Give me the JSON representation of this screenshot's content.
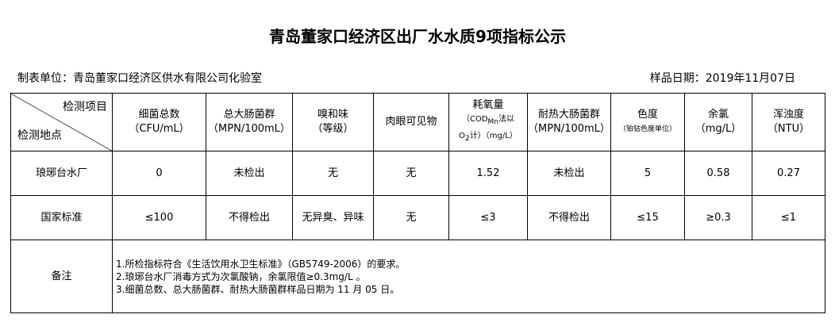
{
  "title": "青岛董家口经济区出厂水水质9项指标公示",
  "unit": "制表单位：青岛董家口经济区供水有限公司化验室",
  "date": "样品日期：2019年11月07日",
  "corner": {
    "top": "检测项目",
    "bottom": "检测地点"
  },
  "headers": [
    {
      "name": "细菌总数",
      "unit": "（CFU/mL）"
    },
    {
      "name": "总大肠菌群",
      "unit": "（MPN/100mL）"
    },
    {
      "name": "嗅和味",
      "unit": "（等级）"
    },
    {
      "name": "肉眼可见物",
      "unit": ""
    },
    {
      "name": "耗氧量",
      "unit": "（COD",
      "sub": "Mn",
      "unit2": "法以",
      "o2": "O",
      "o2sub": "2",
      "unit3": "计）（mg/L）"
    },
    {
      "name": "耐热大肠菌群",
      "unit": "（MPN/100mL）"
    },
    {
      "name": "色度",
      "unit": "（铂钴色度单位）"
    },
    {
      "name": "余氯",
      "unit": "（mg/L）"
    },
    {
      "name": "浑浊度",
      "unit": "（NTU）"
    }
  ],
  "rows": [
    {
      "label": "琅琊台水厂",
      "values": [
        "0",
        "未检出",
        "无",
        "无",
        "1.52",
        "未检出",
        "5",
        "0.58",
        "0.27"
      ]
    },
    {
      "label": "国家标准",
      "values": [
        "≤100",
        "不得检出",
        "无异臭、异味",
        "无",
        "≤3",
        "不得检出",
        "≤15",
        "≥0.3",
        "≤1"
      ]
    }
  ],
  "notes": {
    "label": "备注",
    "lines": [
      "1.所检指标符合《生活饮用水卫生标准》（GB5749-2006）的要求。",
      "2.琅琊台水厂消毒方式为次氯酸钠，余氯限值≥0.3mg/L 。",
      "3.细菌总数、总大肠菌群、耐热大肠菌群样品日期为 11 月 05 日。"
    ]
  }
}
